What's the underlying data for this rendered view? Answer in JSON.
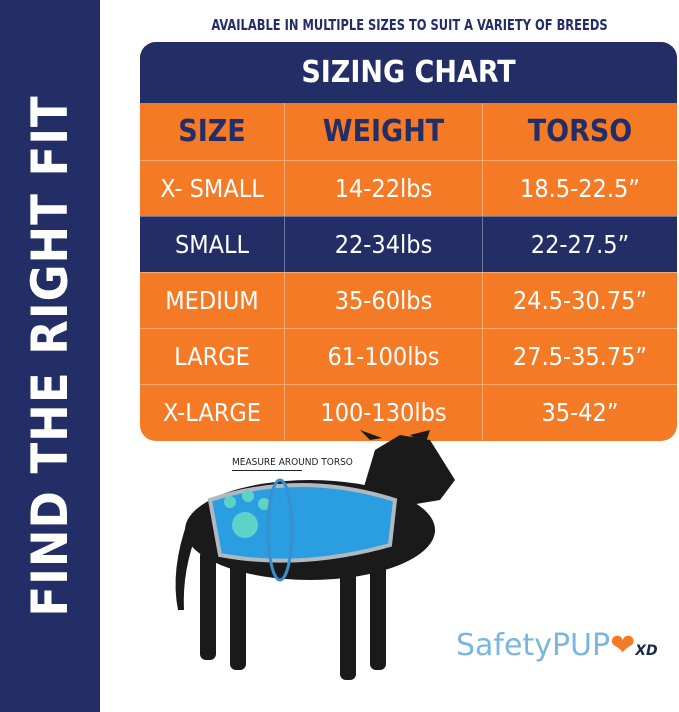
{
  "sidebar": {
    "title": "FIND THE RIGHT FIT"
  },
  "subtitle": "AVAILABLE IN MULTIPLE SIZES TO SUIT A VARIETY OF BREEDS",
  "table": {
    "title": "SIZING CHART",
    "columns": [
      "SIZE",
      "WEIGHT",
      "TORSO"
    ],
    "rows": [
      [
        "X- SMALL",
        "14-22lbs",
        "18.5-22.5”"
      ],
      [
        "SMALL",
        "22-34lbs",
        "22-27.5”"
      ],
      [
        "MEDIUM",
        "35-60lbs",
        "24.5-30.75”"
      ],
      [
        "LARGE",
        "61-100lbs",
        "27.5-35.75”"
      ],
      [
        "X-LARGE",
        "100-130lbs",
        "35-42”"
      ]
    ]
  },
  "measure_label": "MEASURE AROUND TORSO",
  "logo": {
    "text": "SafetyPUP",
    "suffix": "XD"
  },
  "colors": {
    "navy": "#232d66",
    "orange": "#f47a26",
    "vest": "#2a9ee0"
  }
}
